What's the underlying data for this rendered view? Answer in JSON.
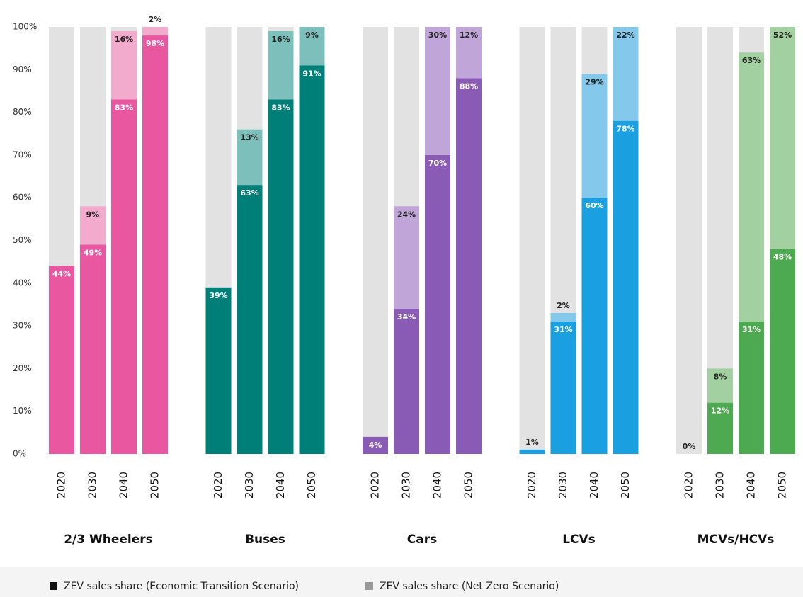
{
  "chart_data": {
    "type": "stacked_bar",
    "groups": [
      "2/3 Wheelers",
      "Buses",
      "Cars",
      "LCVs",
      "MCVs/HCVs"
    ],
    "categories": [
      "2020",
      "2030",
      "2040",
      "2050"
    ],
    "background_color": "#e2e2e2",
    "series": [
      {
        "name": "ZEV sales share (Economic Transition Scenario)",
        "color": "#111111",
        "group_colors": [
          "#e8579f",
          "#007f78",
          "#8a5bb5",
          "#1a9fe0",
          "#4daa50"
        ],
        "values": [
          [
            44,
            49,
            83,
            98
          ],
          [
            39,
            63,
            83,
            91
          ],
          [
            4,
            34,
            70,
            88
          ],
          [
            1,
            31,
            60,
            78
          ],
          [
            0,
            12,
            31,
            48
          ]
        ],
        "value_labels": [
          [
            "44%",
            "49%",
            "83%",
            "98%"
          ],
          [
            "39%",
            "63%",
            "83%",
            "91%"
          ],
          [
            "4%",
            "34%",
            "70%",
            "88%"
          ],
          [
            "1%",
            "31%",
            "60%",
            "78%"
          ],
          [
            "0%",
            "12%",
            "31%",
            "48%"
          ]
        ]
      },
      {
        "name": "ZEV sales share (Net Zero Scenario)",
        "color": "#999999",
        "group_colors": [
          "#f2aacd",
          "#7dbfba",
          "#c0a6d8",
          "#84c9ec",
          "#a2d0a0"
        ],
        "values": [
          [
            null,
            9,
            16,
            2
          ],
          [
            null,
            13,
            16,
            9
          ],
          [
            null,
            24,
            30,
            12
          ],
          [
            null,
            2,
            29,
            22
          ],
          [
            null,
            8,
            63,
            52
          ]
        ],
        "value_labels": [
          [
            null,
            "9%",
            "16%",
            "2%"
          ],
          [
            null,
            "13%",
            "16%",
            "9%"
          ],
          [
            null,
            "24%",
            "30%",
            "12%"
          ],
          [
            null,
            "2%",
            "29%",
            "22%"
          ],
          [
            null,
            "8%",
            "63%",
            "52%"
          ]
        ]
      }
    ],
    "ylim": [
      0,
      100
    ],
    "yticks": [
      {
        "value": 0,
        "label": "0%"
      },
      {
        "value": 10,
        "label": "10%"
      },
      {
        "value": 20,
        "label": "20%"
      },
      {
        "value": 30,
        "label": "30%"
      },
      {
        "value": 40,
        "label": "40%"
      },
      {
        "value": 50,
        "label": "50%"
      },
      {
        "value": 60,
        "label": "60%"
      },
      {
        "value": 70,
        "label": "70%"
      },
      {
        "value": 80,
        "label": "80%"
      },
      {
        "value": 90,
        "label": "90%"
      },
      {
        "value": 100,
        "label": "100%"
      }
    ]
  }
}
